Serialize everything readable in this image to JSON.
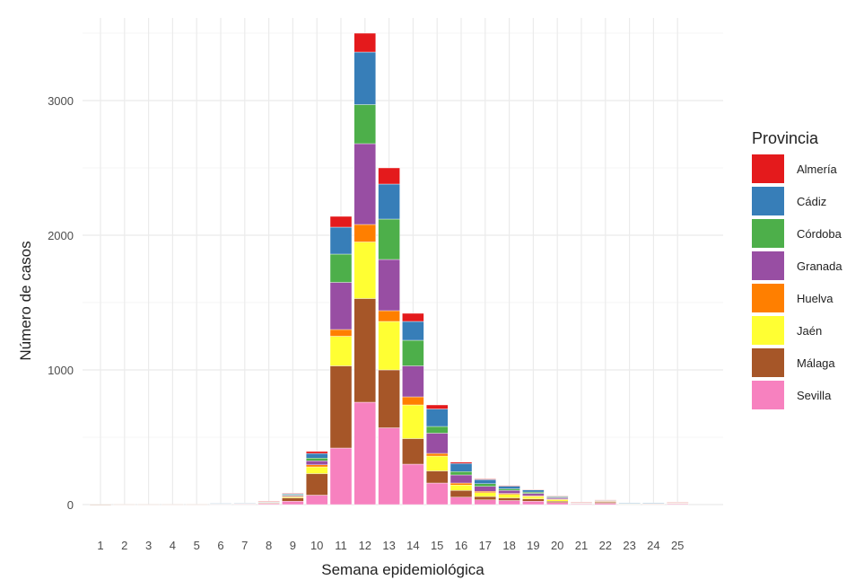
{
  "chart_data": {
    "type": "bar",
    "stacked": true,
    "xlabel": "Semana epidemiológica",
    "ylabel": "Número de casos",
    "ylim": [
      0,
      3600
    ],
    "yticks": [
      0,
      1000,
      2000,
      3000
    ],
    "grid": true,
    "legend": {
      "title": "Provincia",
      "position": "right"
    },
    "categories": [
      "1",
      "2",
      "3",
      "4",
      "5",
      "6",
      "7",
      "8",
      "9",
      "10",
      "11",
      "12",
      "13",
      "14",
      "15",
      "16",
      "17",
      "18",
      "19",
      "20",
      "21",
      "22",
      "23",
      "24",
      "25"
    ],
    "series": [
      {
        "name": "Sevilla",
        "color": "#f781bf",
        "values": [
          0,
          1,
          1,
          1,
          1,
          3,
          4,
          7,
          25,
          70,
          420,
          760,
          570,
          300,
          160,
          55,
          35,
          30,
          25,
          15,
          5,
          10,
          4,
          4,
          6
        ]
      },
      {
        "name": "Málaga",
        "color": "#a65628",
        "values": [
          1,
          1,
          1,
          1,
          1,
          2,
          3,
          6,
          25,
          160,
          610,
          770,
          430,
          190,
          90,
          50,
          25,
          20,
          18,
          10,
          4,
          8,
          2,
          3,
          4
        ]
      },
      {
        "name": "Jaén",
        "color": "#ffff33",
        "values": [
          0,
          0,
          0,
          0,
          0,
          1,
          1,
          2,
          8,
          50,
          220,
          420,
          360,
          250,
          110,
          40,
          28,
          25,
          17,
          12,
          2,
          4,
          1,
          1,
          2
        ]
      },
      {
        "name": "Huelva",
        "color": "#ff7f00",
        "values": [
          0,
          0,
          0,
          0,
          0,
          0,
          1,
          1,
          3,
          15,
          50,
          130,
          80,
          60,
          20,
          15,
          10,
          8,
          6,
          4,
          1,
          2,
          1,
          1,
          1
        ]
      },
      {
        "name": "Granada",
        "color": "#984ea3",
        "values": [
          0,
          0,
          0,
          0,
          0,
          1,
          1,
          2,
          8,
          30,
          350,
          600,
          380,
          230,
          150,
          60,
          37,
          22,
          17,
          10,
          2,
          4,
          1,
          2,
          2
        ]
      },
      {
        "name": "Córdoba",
        "color": "#4daf4a",
        "values": [
          0,
          0,
          0,
          0,
          0,
          1,
          1,
          2,
          5,
          20,
          210,
          290,
          300,
          190,
          50,
          25,
          20,
          12,
          10,
          6,
          1,
          2,
          1,
          1,
          1
        ]
      },
      {
        "name": "Cádiz",
        "color": "#377eb8",
        "values": [
          0,
          0,
          0,
          0,
          0,
          1,
          1,
          3,
          8,
          35,
          200,
          390,
          260,
          140,
          130,
          60,
          30,
          20,
          15,
          6,
          2,
          3,
          1,
          1,
          2
        ]
      },
      {
        "name": "Almería",
        "color": "#e41a1c",
        "values": [
          0,
          0,
          0,
          0,
          0,
          0,
          0,
          1,
          2,
          15,
          80,
          140,
          120,
          60,
          30,
          10,
          5,
          5,
          4,
          2,
          1,
          2,
          0,
          0,
          1
        ]
      }
    ],
    "legend_order": [
      "Almería",
      "Cádiz",
      "Córdoba",
      "Granada",
      "Huelva",
      "Jaén",
      "Málaga",
      "Sevilla"
    ]
  }
}
